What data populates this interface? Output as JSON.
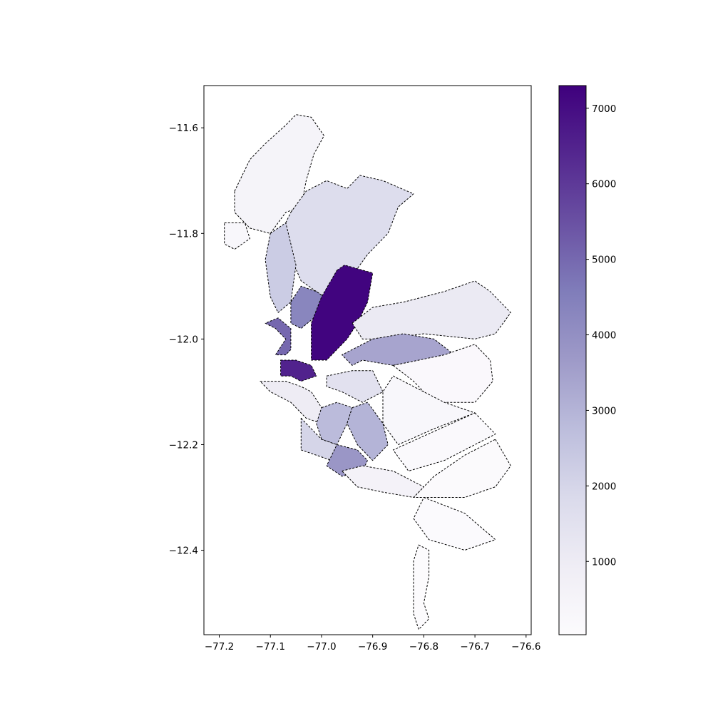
{
  "chart_data": {
    "type": "choropleth",
    "title": "",
    "xlabel": "",
    "ylabel": "",
    "xlim": [
      -77.23,
      -76.59
    ],
    "ylim": [
      -12.56,
      -11.52
    ],
    "x_ticks": [
      -77.2,
      -77.1,
      -77.0,
      -76.9,
      -76.8,
      -76.7,
      -76.6
    ],
    "x_tick_labels": [
      "−77.2",
      "−77.1",
      "−77.0",
      "−76.9",
      "−76.8",
      "−76.7",
      "−76.6"
    ],
    "y_ticks": [
      -11.6,
      -11.8,
      -12.0,
      -12.2,
      -12.4
    ],
    "y_tick_labels": [
      "−11.6",
      "−11.8",
      "−12.0",
      "−12.2",
      "−12.4"
    ],
    "colorbar": {
      "colormap": "Purples",
      "min": 30,
      "max": 7300,
      "ticks": [
        1000,
        2000,
        3000,
        4000,
        5000,
        6000,
        7000
      ],
      "tick_labels": [
        "1000",
        "2000",
        "3000",
        "4000",
        "5000",
        "6000",
        "7000"
      ]
    },
    "regions": [
      {
        "value": 500,
        "coords": [
          [
            -77.17,
            -11.72
          ],
          [
            -77.14,
            -11.66
          ],
          [
            -77.11,
            -11.63
          ],
          [
            -77.07,
            -11.595
          ],
          [
            -77.05,
            -11.575
          ],
          [
            -77.02,
            -11.58
          ],
          [
            -76.995,
            -11.615
          ],
          [
            -77.015,
            -11.65
          ],
          [
            -77.03,
            -11.7
          ],
          [
            -77.04,
            -11.75
          ],
          [
            -77.07,
            -11.76
          ],
          [
            -77.1,
            -11.8
          ],
          [
            -77.14,
            -11.79
          ],
          [
            -77.17,
            -11.76
          ]
        ]
      },
      {
        "value": 300,
        "coords": [
          [
            -77.19,
            -11.78
          ],
          [
            -77.15,
            -11.78
          ],
          [
            -77.14,
            -11.81
          ],
          [
            -77.17,
            -11.83
          ],
          [
            -77.19,
            -11.82
          ]
        ]
      },
      {
        "value": 1700,
        "coords": [
          [
            -77.06,
            -11.76
          ],
          [
            -77.03,
            -11.72
          ],
          [
            -76.99,
            -11.7
          ],
          [
            -76.95,
            -11.715
          ],
          [
            -76.925,
            -11.69
          ],
          [
            -76.88,
            -11.7
          ],
          [
            -76.82,
            -11.725
          ],
          [
            -76.85,
            -11.75
          ],
          [
            -76.87,
            -11.8
          ],
          [
            -76.91,
            -11.84
          ],
          [
            -76.955,
            -11.9
          ],
          [
            -76.995,
            -11.92
          ],
          [
            -77.04,
            -11.89
          ],
          [
            -77.08,
            -11.8
          ]
        ]
      },
      {
        "value": 2300,
        "coords": [
          [
            -77.1,
            -11.8
          ],
          [
            -77.07,
            -11.78
          ],
          [
            -77.05,
            -11.86
          ],
          [
            -77.06,
            -11.93
          ],
          [
            -77.085,
            -11.95
          ],
          [
            -77.1,
            -11.92
          ],
          [
            -77.11,
            -11.85
          ]
        ]
      },
      {
        "value": 4300,
        "coords": [
          [
            -77.06,
            -11.93
          ],
          [
            -77.04,
            -11.9
          ],
          [
            -77.01,
            -11.91
          ],
          [
            -76.995,
            -11.92
          ],
          [
            -77.015,
            -11.96
          ],
          [
            -77.04,
            -11.98
          ],
          [
            -77.06,
            -11.97
          ]
        ]
      },
      {
        "value": 7200,
        "coords": [
          [
            -76.97,
            -11.87
          ],
          [
            -76.955,
            -11.86
          ],
          [
            -76.9,
            -11.875
          ],
          [
            -76.91,
            -11.93
          ],
          [
            -76.93,
            -11.97
          ],
          [
            -76.95,
            -12.0
          ],
          [
            -76.99,
            -12.04
          ],
          [
            -77.02,
            -12.04
          ],
          [
            -77.02,
            -11.97
          ],
          [
            -77.0,
            -11.92
          ]
        ]
      },
      {
        "value": 1100,
        "coords": [
          [
            -76.94,
            -11.97
          ],
          [
            -76.9,
            -11.94
          ],
          [
            -76.84,
            -11.93
          ],
          [
            -76.76,
            -11.91
          ],
          [
            -76.7,
            -11.89
          ],
          [
            -76.67,
            -11.91
          ],
          [
            -76.63,
            -11.95
          ],
          [
            -76.66,
            -11.99
          ],
          [
            -76.7,
            -12.0
          ],
          [
            -76.8,
            -11.99
          ],
          [
            -76.88,
            -12.0
          ],
          [
            -76.92,
            -12.0
          ]
        ]
      },
      {
        "value": 3400,
        "coords": [
          [
            -76.9,
            -12.0
          ],
          [
            -76.84,
            -11.99
          ],
          [
            -76.78,
            -12.0
          ],
          [
            -76.74,
            -12.03
          ],
          [
            -76.8,
            -12.04
          ],
          [
            -76.86,
            -12.05
          ],
          [
            -76.92,
            -12.04
          ],
          [
            -76.94,
            -12.05
          ],
          [
            -76.96,
            -12.03
          ]
        ]
      },
      {
        "value": 200,
        "coords": [
          [
            -76.86,
            -12.05
          ],
          [
            -76.76,
            -12.03
          ],
          [
            -76.7,
            -12.01
          ],
          [
            -76.67,
            -12.04
          ],
          [
            -76.665,
            -12.08
          ],
          [
            -76.7,
            -12.12
          ],
          [
            -76.78,
            -12.12
          ],
          [
            -76.82,
            -12.08
          ]
        ]
      },
      {
        "value": 5000,
        "coords": [
          [
            -77.11,
            -11.97
          ],
          [
            -77.09,
            -11.98
          ],
          [
            -77.07,
            -12.0
          ],
          [
            -77.09,
            -12.03
          ],
          [
            -77.07,
            -12.03
          ],
          [
            -77.06,
            -12.02
          ],
          [
            -77.06,
            -11.98
          ],
          [
            -77.085,
            -11.96
          ]
        ]
      },
      {
        "value": 6500,
        "coords": [
          [
            -77.08,
            -12.04
          ],
          [
            -77.05,
            -12.04
          ],
          [
            -77.02,
            -12.05
          ],
          [
            -77.01,
            -12.07
          ],
          [
            -77.04,
            -12.08
          ],
          [
            -77.06,
            -12.07
          ],
          [
            -77.08,
            -12.07
          ]
        ]
      },
      {
        "value": 1000,
        "coords": [
          [
            -77.12,
            -12.08
          ],
          [
            -77.07,
            -12.08
          ],
          [
            -77.04,
            -12.09
          ],
          [
            -77.02,
            -12.1
          ],
          [
            -77.0,
            -12.13
          ],
          [
            -77.0,
            -12.16
          ],
          [
            -77.03,
            -12.15
          ],
          [
            -77.06,
            -12.12
          ],
          [
            -77.1,
            -12.1
          ]
        ]
      },
      {
        "value": 1500,
        "coords": [
          [
            -76.99,
            -12.07
          ],
          [
            -76.94,
            -12.06
          ],
          [
            -76.9,
            -12.06
          ],
          [
            -76.88,
            -12.1
          ],
          [
            -76.92,
            -12.12
          ],
          [
            -76.96,
            -12.1
          ],
          [
            -76.99,
            -12.09
          ]
        ]
      },
      {
        "value": 2800,
        "coords": [
          [
            -77.0,
            -12.13
          ],
          [
            -76.97,
            -12.12
          ],
          [
            -76.94,
            -12.13
          ],
          [
            -76.95,
            -12.16
          ],
          [
            -76.97,
            -12.2
          ],
          [
            -77.0,
            -12.19
          ],
          [
            -77.01,
            -12.16
          ]
        ]
      },
      {
        "value": 3000,
        "coords": [
          [
            -76.94,
            -12.13
          ],
          [
            -76.91,
            -12.12
          ],
          [
            -76.88,
            -12.16
          ],
          [
            -76.87,
            -12.2
          ],
          [
            -76.9,
            -12.23
          ],
          [
            -76.93,
            -12.2
          ],
          [
            -76.95,
            -12.16
          ]
        ]
      },
      {
        "value": 2000,
        "coords": [
          [
            -77.04,
            -12.15
          ],
          [
            -77.0,
            -12.19
          ],
          [
            -76.97,
            -12.2
          ],
          [
            -76.98,
            -12.23
          ],
          [
            -77.01,
            -12.22
          ],
          [
            -77.04,
            -12.21
          ]
        ]
      },
      {
        "value": 3800,
        "coords": [
          [
            -76.97,
            -12.2
          ],
          [
            -76.93,
            -12.21
          ],
          [
            -76.91,
            -12.23
          ],
          [
            -76.92,
            -12.25
          ],
          [
            -76.96,
            -12.26
          ],
          [
            -76.99,
            -12.24
          ]
        ]
      },
      {
        "value": 300,
        "coords": [
          [
            -76.86,
            -12.07
          ],
          [
            -76.8,
            -12.1
          ],
          [
            -76.76,
            -12.12
          ],
          [
            -76.7,
            -12.14
          ],
          [
            -76.78,
            -12.17
          ],
          [
            -76.85,
            -12.2
          ],
          [
            -76.88,
            -12.16
          ],
          [
            -76.88,
            -12.1
          ]
        ]
      },
      {
        "value": 150,
        "coords": [
          [
            -76.7,
            -12.14
          ],
          [
            -76.66,
            -12.18
          ],
          [
            -76.7,
            -12.2
          ],
          [
            -76.76,
            -12.23
          ],
          [
            -76.83,
            -12.25
          ],
          [
            -76.86,
            -12.21
          ]
        ]
      },
      {
        "value": 100,
        "coords": [
          [
            -76.66,
            -12.19
          ],
          [
            -76.63,
            -12.24
          ],
          [
            -76.66,
            -12.28
          ],
          [
            -76.72,
            -12.3
          ],
          [
            -76.78,
            -12.3
          ],
          [
            -76.82,
            -12.3
          ],
          [
            -76.78,
            -12.26
          ],
          [
            -76.72,
            -12.22
          ]
        ]
      },
      {
        "value": 80,
        "coords": [
          [
            -76.8,
            -12.3
          ],
          [
            -76.72,
            -12.33
          ],
          [
            -76.66,
            -12.38
          ],
          [
            -76.72,
            -12.4
          ],
          [
            -76.79,
            -12.38
          ],
          [
            -76.82,
            -12.34
          ]
        ]
      },
      {
        "value": 60,
        "coords": [
          [
            -76.81,
            -12.39
          ],
          [
            -76.79,
            -12.4
          ],
          [
            -76.79,
            -12.45
          ],
          [
            -76.8,
            -12.5
          ],
          [
            -76.79,
            -12.53
          ],
          [
            -76.81,
            -12.55
          ],
          [
            -76.82,
            -12.52
          ],
          [
            -76.82,
            -12.46
          ],
          [
            -76.82,
            -12.42
          ]
        ]
      },
      {
        "value": 600,
        "coords": [
          [
            -76.96,
            -12.25
          ],
          [
            -76.92,
            -12.24
          ],
          [
            -76.86,
            -12.25
          ],
          [
            -76.8,
            -12.28
          ],
          [
            -76.82,
            -12.3
          ],
          [
            -76.88,
            -12.29
          ],
          [
            -76.93,
            -12.28
          ]
        ]
      }
    ]
  }
}
